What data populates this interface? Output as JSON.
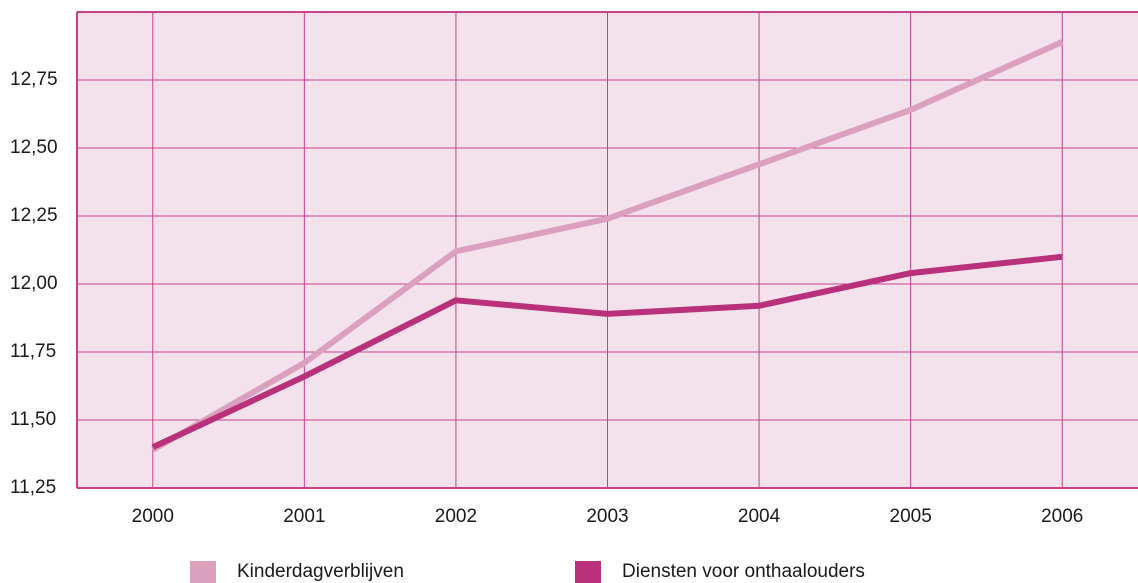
{
  "chart_data": {
    "type": "line",
    "categories": [
      "2000",
      "2001",
      "2002",
      "2003",
      "2004",
      "2005",
      "2006"
    ],
    "series": [
      {
        "name": "Kinderdagverblijven",
        "color": "#dba0bd",
        "values": [
          11.39,
          11.71,
          12.12,
          12.24,
          12.44,
          12.64,
          12.89
        ]
      },
      {
        "name": "Diensten voor onthaalouders",
        "color": "#b8317a",
        "values": [
          11.4,
          11.66,
          11.94,
          11.89,
          11.92,
          12.04,
          12.1
        ]
      }
    ],
    "ylim": [
      11.25,
      13.0
    ],
    "yticks": [
      {
        "value": 11.25,
        "label": "11,25"
      },
      {
        "value": 11.5,
        "label": "11,50"
      },
      {
        "value": 11.75,
        "label": "11,75"
      },
      {
        "value": 12.0,
        "label": "12,00"
      },
      {
        "value": 12.25,
        "label": "12,25"
      },
      {
        "value": 12.5,
        "label": "12,50"
      },
      {
        "value": 12.75,
        "label": "12,75"
      }
    ],
    "grid": true
  }
}
